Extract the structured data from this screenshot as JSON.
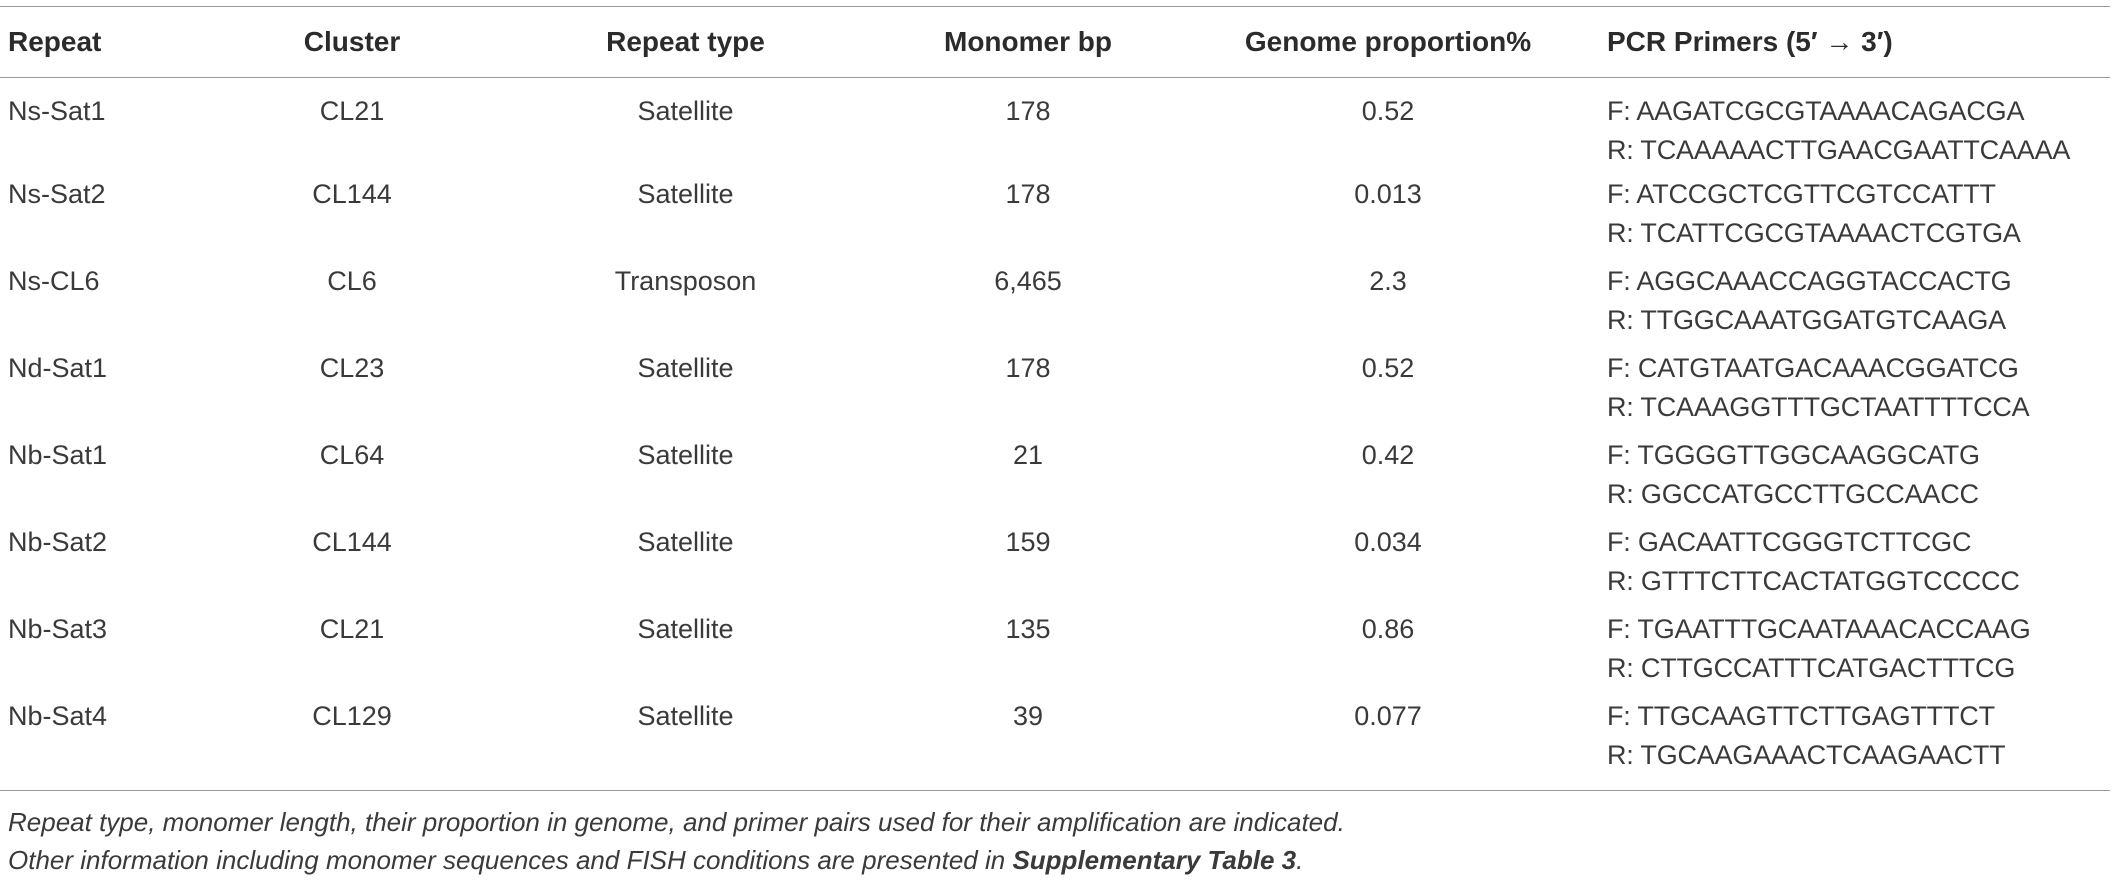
{
  "table": {
    "headers": {
      "repeat": "Repeat",
      "cluster": "Cluster",
      "repeat_type": "Repeat type",
      "monomer_bp": "Monomer bp",
      "genome_proportion": "Genome proportion%",
      "pcr_primers": "PCR Primers (5′ → 3′)"
    },
    "rows": [
      {
        "repeat": "Ns-Sat1",
        "cluster": "CL21",
        "repeat_type": "Satellite",
        "monomer_bp": "178",
        "genome_proportion": "0.52",
        "primer_f": "F: AAGATCGCGTAAAACAGACGA",
        "primer_r": "R: TCAAAAACTTGAACGAATTCAAAA"
      },
      {
        "repeat": "Ns-Sat2",
        "cluster": "CL144",
        "repeat_type": "Satellite",
        "monomer_bp": "178",
        "genome_proportion": "0.013",
        "primer_f": "F: ATCCGCTCGTTCGTCCATTT",
        "primer_r": "R: TCATTCGCGTAAAACTCGTGA"
      },
      {
        "repeat": "Ns-CL6",
        "cluster": "CL6",
        "repeat_type": "Transposon",
        "monomer_bp": "6,465",
        "genome_proportion": "2.3",
        "primer_f": "F: AGGCAAACCAGGTACCACTG",
        "primer_r": "R: TTGGCAAATGGATGTCAAGA"
      },
      {
        "repeat": "Nd-Sat1",
        "cluster": "CL23",
        "repeat_type": "Satellite",
        "monomer_bp": "178",
        "genome_proportion": "0.52",
        "primer_f": "F: CATGTAATGACAAACGGATCG",
        "primer_r": "R: TCAAAGGTTTGCTAATTTTCCA"
      },
      {
        "repeat": "Nb-Sat1",
        "cluster": "CL64",
        "repeat_type": "Satellite",
        "monomer_bp": "21",
        "genome_proportion": "0.42",
        "primer_f": "F: TGGGGTTGGCAAGGCATG",
        "primer_r": "R: GGCCATGCCTTGCCAACC"
      },
      {
        "repeat": "Nb-Sat2",
        "cluster": "CL144",
        "repeat_type": "Satellite",
        "monomer_bp": "159",
        "genome_proportion": "0.034",
        "primer_f": "F: GACAATTCGGGTCTTCGC",
        "primer_r": "R: GTTTCTTCACTATGGTCCCCC"
      },
      {
        "repeat": "Nb-Sat3",
        "cluster": "CL21",
        "repeat_type": "Satellite",
        "monomer_bp": "135",
        "genome_proportion": "0.86",
        "primer_f": "F: TGAATTTGCAATAAACACCAAG",
        "primer_r": "R: CTTGCCATTTCATGACTTTCG"
      },
      {
        "repeat": "Nb-Sat4",
        "cluster": "CL129",
        "repeat_type": "Satellite",
        "monomer_bp": "39",
        "genome_proportion": "0.077",
        "primer_f": "F: TTGCAAGTTCTTGAGTTTCT",
        "primer_r": "R: TGCAAGAAACTCAAGAACTT"
      }
    ]
  },
  "caption": {
    "line1": "Repeat type, monomer length, their proportion in genome, and primer pairs used for their amplification are indicated.",
    "line2_prefix": "Other information including monomer sequences and FISH conditions are presented in ",
    "line2_ref": "Supplementary Table 3",
    "line2_suffix": "."
  }
}
